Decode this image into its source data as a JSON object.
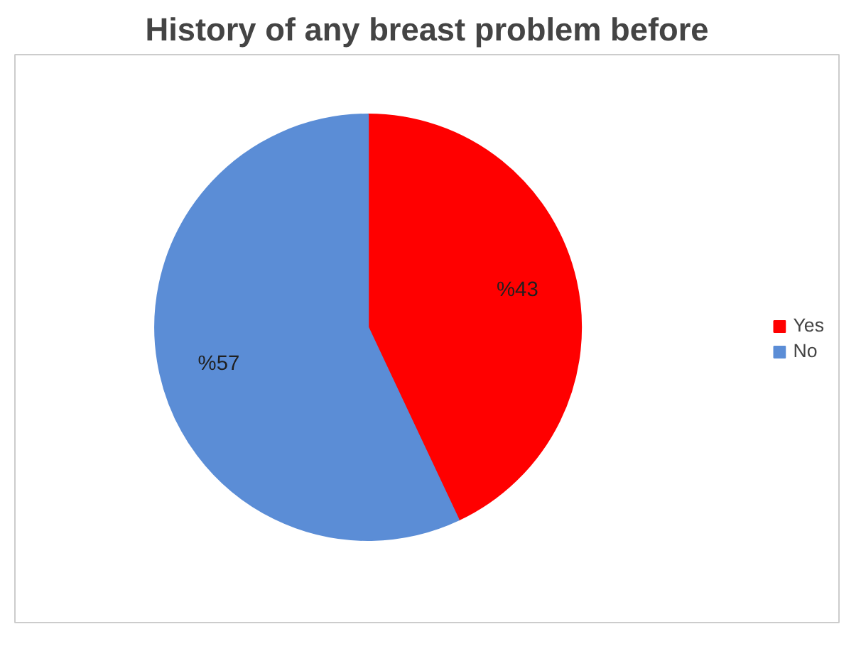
{
  "chart_data": {
    "type": "pie",
    "title": "History of any breast problem before",
    "categories": [
      "Yes",
      "No"
    ],
    "values": [
      43,
      57
    ],
    "colors": [
      "#ff0000",
      "#5b8dd6"
    ],
    "value_labels": [
      "%43",
      "%57"
    ],
    "legend": "right"
  }
}
